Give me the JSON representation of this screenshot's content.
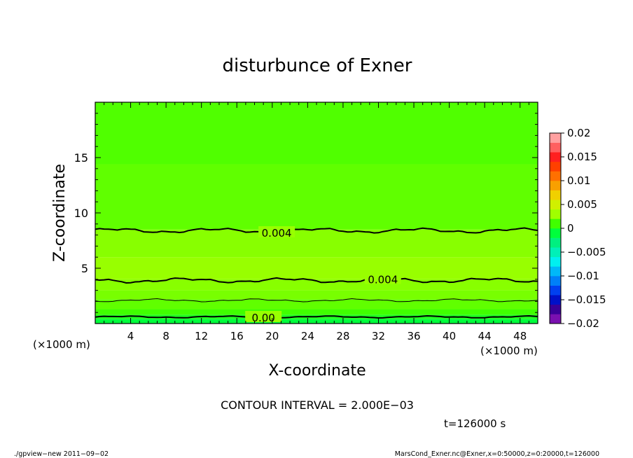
{
  "chart_data": {
    "type": "heatmap",
    "title": "disturbunce of Exner",
    "xlabel": "X-coordinate",
    "ylabel": "Z-coordinate",
    "x_unit_left": "(×1000 m)",
    "x_unit_right": "(×1000 m)",
    "xlim": [
      0,
      50
    ],
    "ylim": [
      0,
      20
    ],
    "x_ticks": [
      "4",
      "8",
      "12",
      "16",
      "20",
      "24",
      "28",
      "32",
      "36",
      "40",
      "44",
      "48"
    ],
    "x_tick_values": [
      4,
      8,
      12,
      16,
      20,
      24,
      28,
      32,
      36,
      40,
      44,
      48
    ],
    "y_ticks": [
      "5",
      "10",
      "15"
    ],
    "y_tick_values": [
      5,
      10,
      15
    ],
    "colorbar": {
      "labels": [
        "0.02",
        "0.015",
        "0.01",
        "0.005",
        "0",
        "−0.005",
        "−0.01",
        "−0.015",
        "−0.02"
      ],
      "label_values": [
        0.02,
        0.015,
        0.01,
        0.005,
        0,
        -0.005,
        -0.01,
        -0.015,
        -0.02
      ],
      "range": [
        -0.02,
        0.02
      ],
      "colors_bottom_to_top": [
        "#7a10b0",
        "#3a0098",
        "#0010c8",
        "#0040f0",
        "#0080f8",
        "#00b8f8",
        "#00f0f0",
        "#00f0b8",
        "#00f080",
        "#00ff3c",
        "#40ff00",
        "#a0ff00",
        "#d0f000",
        "#f0d000",
        "#f8a000",
        "#ff7000",
        "#ff4000",
        "#ff2020",
        "#ff6060",
        "#ffa0a0"
      ]
    },
    "bands": [
      {
        "z_top": 0.4,
        "color": "#00ff3c"
      },
      {
        "z_top": 0.8,
        "color": "#20ff20"
      },
      {
        "z_top": 1.3,
        "color": "#40ff00"
      },
      {
        "z_top": 2.2,
        "color": "#60ff00"
      },
      {
        "z_top": 3.0,
        "color": "#78ff00"
      },
      {
        "z_top": 4.0,
        "color": "#88ff00"
      },
      {
        "z_top": 6.0,
        "color": "#98ff00"
      },
      {
        "z_top": 8.5,
        "color": "#88ff00"
      },
      {
        "z_top": 14.4,
        "color": "#60ff00"
      },
      {
        "z_top": 20.0,
        "color": "#50ff00"
      }
    ],
    "contours": [
      {
        "z": 8.4,
        "label": "0.004",
        "label_x": 20.5,
        "amp": 0.25,
        "width": 2
      },
      {
        "z": 3.9,
        "label": "0.004",
        "label_x": 32.5,
        "amp": 0.25,
        "width": 2
      },
      {
        "z": 2.1,
        "label": "",
        "label_x": null,
        "amp": 0.15,
        "width": 1
      },
      {
        "z": 0.6,
        "label": "0.00",
        "label_x": 19,
        "amp": 0.1,
        "width": 2
      }
    ],
    "contour_interval_text": "CONTOUR INTERVAL = 2.000E−03",
    "time_text": "t=126000 s"
  },
  "footer": {
    "left": "./gpview−new   2011−09−02",
    "right": "MarsCond_Exner.nc@Exner,x=0:50000,z=0:20000,t=126000"
  }
}
